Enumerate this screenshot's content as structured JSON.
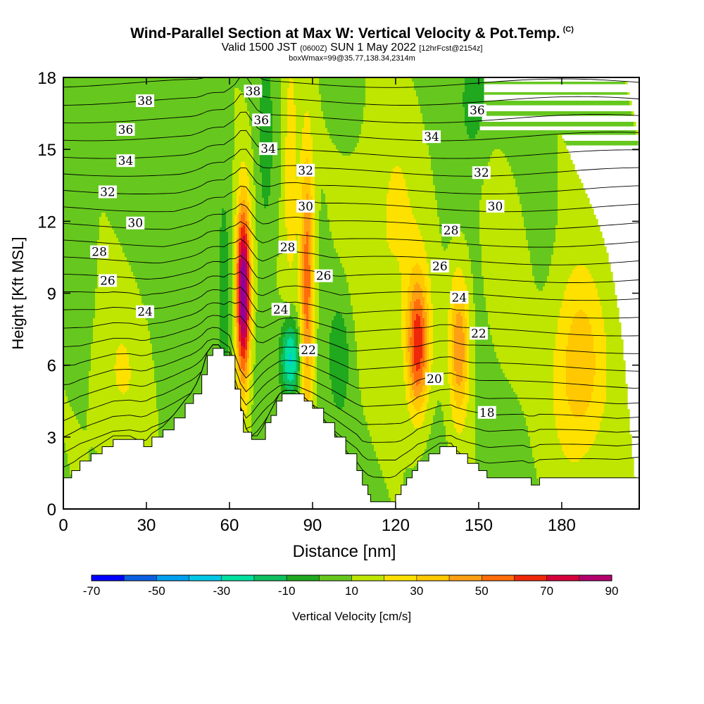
{
  "title": {
    "main": "Wind-Parallel Section at Max W: Vertical Velocity & Pot.Temp.",
    "copyright": "(C)",
    "valid_prefix": "Valid 1500 JST",
    "utc": "(0600Z)",
    "valid_date": "SUN 1 May 2022",
    "forecast": "[12hrFcst@2154z]",
    "boxwmax": "boxWmax=99@35.77,138.34,2314m"
  },
  "chart_data": {
    "type": "heatmap",
    "xlabel": "Distance [nm]",
    "ylabel": "Height [Kft MSL]",
    "xlim": [
      0,
      208
    ],
    "ylim": [
      0,
      18
    ],
    "xticks": [
      0,
      30,
      60,
      90,
      120,
      150,
      180
    ],
    "yticks": [
      0,
      3,
      6,
      9,
      12,
      15,
      18
    ],
    "colorbar": {
      "label": "Vertical Velocity [cm/s]",
      "tick_labels": [
        "-70",
        "-50",
        "-30",
        "-10",
        "10",
        "30",
        "50",
        "70",
        "90"
      ],
      "levels": [
        -70,
        -60,
        -50,
        -40,
        -30,
        -20,
        -10,
        0,
        10,
        20,
        30,
        40,
        50,
        60,
        70,
        80,
        90
      ],
      "colors": [
        "#0000ff",
        "#0b5fe0",
        "#00a0f0",
        "#00c8e6",
        "#00e0a0",
        "#10c060",
        "#20a81e",
        "#66c81e",
        "#bee600",
        "#ffe100",
        "#ffc800",
        "#ffa014",
        "#ff6e0a",
        "#f0280a",
        "#d7003c",
        "#b4006e",
        "#8c00a0"
      ]
    },
    "terrain_kft": [
      [
        0,
        1.3
      ],
      [
        3,
        1.6
      ],
      [
        6,
        2.0
      ],
      [
        10,
        2.3
      ],
      [
        14,
        2.6
      ],
      [
        18,
        2.9
      ],
      [
        24,
        2.9
      ],
      [
        29,
        2.6
      ],
      [
        32,
        3.0
      ],
      [
        36,
        3.3
      ],
      [
        40,
        3.8
      ],
      [
        44,
        4.4
      ],
      [
        47,
        4.8
      ],
      [
        50,
        5.6
      ],
      [
        52,
        6.4
      ],
      [
        54,
        6.7
      ],
      [
        56,
        6.7
      ],
      [
        58,
        6.4
      ],
      [
        60,
        6.4
      ],
      [
        62,
        5.0
      ],
      [
        63,
        5.0
      ],
      [
        64,
        4.1
      ],
      [
        65,
        3.2
      ],
      [
        66,
        3.2
      ],
      [
        68,
        2.9
      ],
      [
        71,
        2.9
      ],
      [
        73,
        3.6
      ],
      [
        75,
        3.9
      ],
      [
        77,
        4.5
      ],
      [
        79,
        4.8
      ],
      [
        84,
        4.8
      ],
      [
        87,
        4.5
      ],
      [
        90,
        4.2
      ],
      [
        94,
        3.6
      ],
      [
        98,
        3.0
      ],
      [
        102,
        2.3
      ],
      [
        106,
        1.6
      ],
      [
        108,
        1.0
      ],
      [
        110,
        0.6
      ],
      [
        111,
        0.3
      ],
      [
        112,
        0.3
      ],
      [
        118,
        0.3
      ],
      [
        120,
        0.6
      ],
      [
        122,
        1.0
      ],
      [
        124,
        1.3
      ],
      [
        126,
        1.6
      ],
      [
        128,
        2.0
      ],
      [
        132,
        2.3
      ],
      [
        136,
        2.6
      ],
      [
        140,
        2.6
      ],
      [
        142,
        2.3
      ],
      [
        146,
        1.9
      ],
      [
        150,
        1.6
      ],
      [
        153,
        1.3
      ],
      [
        156,
        1.3
      ],
      [
        166,
        1.3
      ],
      [
        169,
        1.0
      ],
      [
        172,
        1.3
      ],
      [
        200,
        1.3
      ],
      [
        208,
        1.6
      ]
    ],
    "velocity_features": [
      {
        "x": 65,
        "y_kft": 9.0,
        "w_cm_s": 90
      },
      {
        "x": 88,
        "y_kft": 9.0,
        "w_cm_s": 55
      },
      {
        "x": 128,
        "y_kft": 6.8,
        "w_cm_s": 60
      },
      {
        "x": 143,
        "y_kft": 6.5,
        "w_cm_s": 45
      },
      {
        "x": 186,
        "y_kft": 5.8,
        "w_cm_s": 38
      },
      {
        "x": 82,
        "y_kft": 6.5,
        "w_cm_s": -30
      },
      {
        "x": 75,
        "y_kft": 15.5,
        "w_cm_s": -15
      },
      {
        "x": 100,
        "y_kft": 6.5,
        "w_cm_s": -15
      }
    ],
    "theta_contour_labels": [
      {
        "label": "38",
        "x": 29.5,
        "y": 17.0
      },
      {
        "label": "36",
        "x": 22.5,
        "y": 15.8
      },
      {
        "label": "34",
        "x": 22.5,
        "y": 14.5
      },
      {
        "label": "32",
        "x": 16,
        "y": 13.2
      },
      {
        "label": "30",
        "x": 26,
        "y": 11.9
      },
      {
        "label": "28",
        "x": 13,
        "y": 10.7
      },
      {
        "label": "26",
        "x": 16,
        "y": 9.5
      },
      {
        "label": "24",
        "x": 29.5,
        "y": 8.2
      },
      {
        "label": "38",
        "x": 68.5,
        "y": 17.4
      },
      {
        "label": "36",
        "x": 71.5,
        "y": 16.2
      },
      {
        "label": "34",
        "x": 74,
        "y": 15.0
      },
      {
        "label": "32",
        "x": 87.5,
        "y": 14.1
      },
      {
        "label": "30",
        "x": 87.5,
        "y": 12.6
      },
      {
        "label": "28",
        "x": 81,
        "y": 10.9
      },
      {
        "label": "26",
        "x": 94,
        "y": 9.7
      },
      {
        "label": "24",
        "x": 78.5,
        "y": 8.3
      },
      {
        "label": "22",
        "x": 88.5,
        "y": 6.6
      },
      {
        "label": "36",
        "x": 149.5,
        "y": 16.6
      },
      {
        "label": "34",
        "x": 133,
        "y": 15.5
      },
      {
        "label": "32",
        "x": 151,
        "y": 14.0
      },
      {
        "label": "30",
        "x": 156,
        "y": 12.6
      },
      {
        "label": "28",
        "x": 140,
        "y": 11.6
      },
      {
        "label": "26",
        "x": 136,
        "y": 10.1
      },
      {
        "label": "24",
        "x": 143,
        "y": 8.8
      },
      {
        "label": "22",
        "x": 150,
        "y": 7.3
      },
      {
        "label": "20",
        "x": 134,
        "y": 5.4
      },
      {
        "label": "18",
        "x": 153,
        "y": 4.0
      }
    ]
  }
}
